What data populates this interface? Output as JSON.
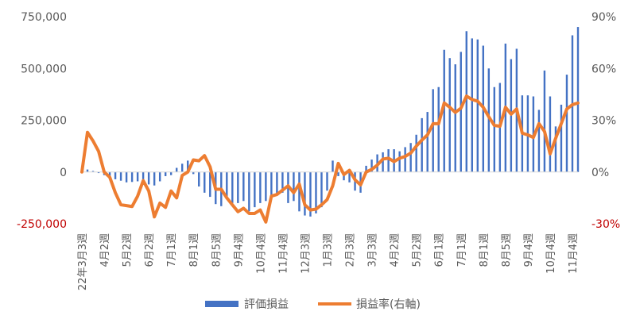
{
  "chart_data": {
    "type": "bar",
    "combo": "bar+line",
    "series": [
      {
        "name": "評価損益",
        "type": "bar",
        "axis": "left",
        "color": "#4472C4",
        "values": [
          14000,
          12000,
          5000,
          -5000,
          -15000,
          -25000,
          -35000,
          -42000,
          -50000,
          -48000,
          -45000,
          -35000,
          -60000,
          -65000,
          -45000,
          -20000,
          -15000,
          20000,
          40000,
          55000,
          -10000,
          -70000,
          -100000,
          -120000,
          -155000,
          -165000,
          -130000,
          -150000,
          -150000,
          -140000,
          -190000,
          -170000,
          -150000,
          -140000,
          -120000,
          -110000,
          -100000,
          -150000,
          -140000,
          -190000,
          -210000,
          -215000,
          -200000,
          -170000,
          -90000,
          55000,
          -20000,
          -40000,
          -50000,
          -90000,
          -100000,
          30000,
          60000,
          85000,
          95000,
          110000,
          110000,
          100000,
          120000,
          140000,
          180000,
          260000,
          290000,
          400000,
          410000,
          590000,
          550000,
          520000,
          580000,
          680000,
          645000,
          640000,
          610000,
          500000,
          410000,
          430000,
          620000,
          545000,
          595000,
          370000,
          370000,
          365000,
          300000,
          490000,
          365000,
          220000,
          325000,
          470000,
          660000,
          700000
        ]
      },
      {
        "name": "損益率(右軸)",
        "type": "line",
        "axis": "right",
        "color": "#ED7D31",
        "values": [
          0.0,
          23.0,
          18.0,
          12.0,
          0.0,
          -3.0,
          -12.0,
          -19.0,
          -19.5,
          -20.0,
          -14.0,
          -5.0,
          -11.0,
          -26.0,
          -18.0,
          -20.5,
          -11.0,
          -15.0,
          -2.0,
          0.0,
          7.0,
          6.5,
          9.5,
          3.0,
          -10.0,
          -10.0,
          -15.0,
          -19.0,
          -23.0,
          -21.0,
          -24.0,
          -24.0,
          -22.0,
          -29.0,
          -14.0,
          -13.0,
          -10.5,
          -8.0,
          -12.0,
          -7.0,
          -19.0,
          -22.0,
          -21.5,
          -19.0,
          -16.0,
          -8.0,
          5.0,
          -1.5,
          1.0,
          -4.5,
          -7.5,
          0.0,
          1.5,
          4.0,
          7.5,
          8.0,
          6.0,
          8.0,
          9.0,
          11.0,
          15.0,
          18.5,
          21.5,
          28.0,
          28.0,
          40.0,
          37.5,
          34.5,
          37.0,
          44.0,
          42.0,
          41.0,
          37.5,
          32.0,
          27.0,
          26.5,
          37.5,
          33.5,
          36.5,
          22.5,
          21.5,
          20.0,
          28.0,
          23.5,
          10.5,
          19.5,
          28.0,
          36.5,
          39.0,
          40.0
        ]
      }
    ],
    "x_tick_labels": [
      "22年3月3週",
      "4月2週",
      "5月2週",
      "6月2週",
      "7月1週",
      "8月1週",
      "8月5週",
      "9月4週",
      "10月4週",
      "11月4週",
      "12月3週",
      "1月3週",
      "2月3週",
      "3月3週",
      "4月2週",
      "5月2週",
      "6月1週",
      "7月1週",
      "8月1週",
      "8月5週",
      "9月4週",
      "10月4週",
      "11月4週"
    ],
    "y_left": {
      "min": -250000,
      "max": 750000,
      "ticks": [
        -250000,
        0,
        250000,
        500000,
        750000
      ],
      "tick_labels": [
        "-250,000",
        "0",
        "250,000",
        "500,000",
        "750,000"
      ]
    },
    "y_right": {
      "min": -30,
      "max": 90,
      "ticks": [
        -30,
        0,
        30,
        60,
        90
      ],
      "tick_labels": [
        "-30%",
        "0%",
        "30%",
        "60%",
        "90%"
      ]
    },
    "negative_label_color": "#C00000",
    "grid": false,
    "legend_position": "bottom"
  }
}
